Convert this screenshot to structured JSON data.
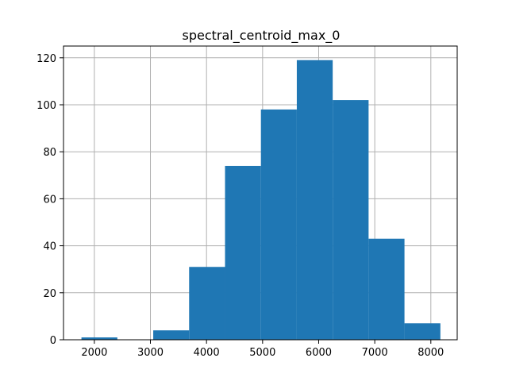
{
  "chart_data": {
    "type": "bar",
    "title": "spectral_centroid_max_0",
    "xlabel": "",
    "ylabel": "",
    "xlim": [
      1450,
      8470
    ],
    "ylim": [
      0,
      125
    ],
    "x_ticks": [
      2000,
      3000,
      4000,
      5000,
      6000,
      7000,
      8000
    ],
    "y_ticks": [
      0,
      20,
      40,
      60,
      80,
      100,
      120
    ],
    "grid": true,
    "bin_edges": [
      1770,
      2410,
      3050,
      3690,
      4330,
      4970,
      5610,
      6250,
      6890,
      7530,
      8170
    ],
    "values": [
      1,
      0,
      4,
      31,
      74,
      98,
      119,
      102,
      43,
      7
    ],
    "colors": {
      "bar": "#1f77b4",
      "grid": "#b0b0b0",
      "axis": "#000000"
    }
  }
}
